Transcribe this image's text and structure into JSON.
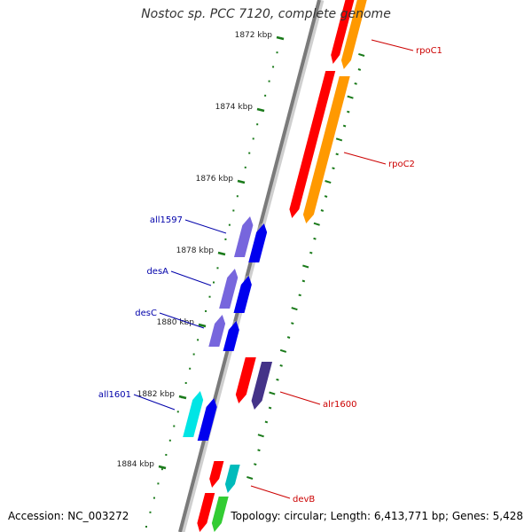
{
  "title": "Nostoc sp. PCC 7120, complete genome",
  "footer": {
    "accession": "Accession: NC_003272",
    "summary": "Topology: circular; Length: 6,413,771 bp; Genes: 5,428"
  },
  "scale": {
    "color": "#1a7a1a",
    "ticks": [
      "1872 kbp",
      "1874 kbp",
      "1876 kbp",
      "1878 kbp",
      "1880 kbp",
      "1882 kbp",
      "1884 kbp"
    ]
  },
  "genes": [
    {
      "name": "rpoC1",
      "strand": "plus",
      "colors": [
        "#ff0000",
        "#ff9900"
      ],
      "label_color": "#cc0000"
    },
    {
      "name": "rpoC2",
      "strand": "plus",
      "colors": [
        "#ff0000",
        "#ff9900"
      ],
      "label_color": "#cc0000"
    },
    {
      "name": "all1597",
      "strand": "minus",
      "colors": [
        "#7766dd",
        "#0000ee"
      ],
      "label_color": "#0000aa"
    },
    {
      "name": "desA",
      "strand": "minus",
      "colors": [
        "#7766dd",
        "#0000ee"
      ],
      "label_color": "#0000aa"
    },
    {
      "name": "desC",
      "strand": "minus",
      "colors": [
        "#7766dd",
        "#0000ee"
      ],
      "label_color": "#0000aa"
    },
    {
      "name": "alr1600",
      "strand": "plus",
      "colors": [
        "#ff0000",
        "#443388"
      ],
      "label_color": "#cc0000"
    },
    {
      "name": "all1601",
      "strand": "minus",
      "colors": [
        "#00e5e5",
        "#0000ee"
      ],
      "label_color": "#0000aa"
    },
    {
      "name": "devB",
      "strand": "plus",
      "colors": [
        "#ff0000",
        "#00bbbb"
      ],
      "label_color": "#cc0000"
    },
    {
      "name": "",
      "strand": "plus",
      "colors": [
        "#ff0000",
        "#33cc33"
      ],
      "label_color": "#cc0000"
    }
  ]
}
